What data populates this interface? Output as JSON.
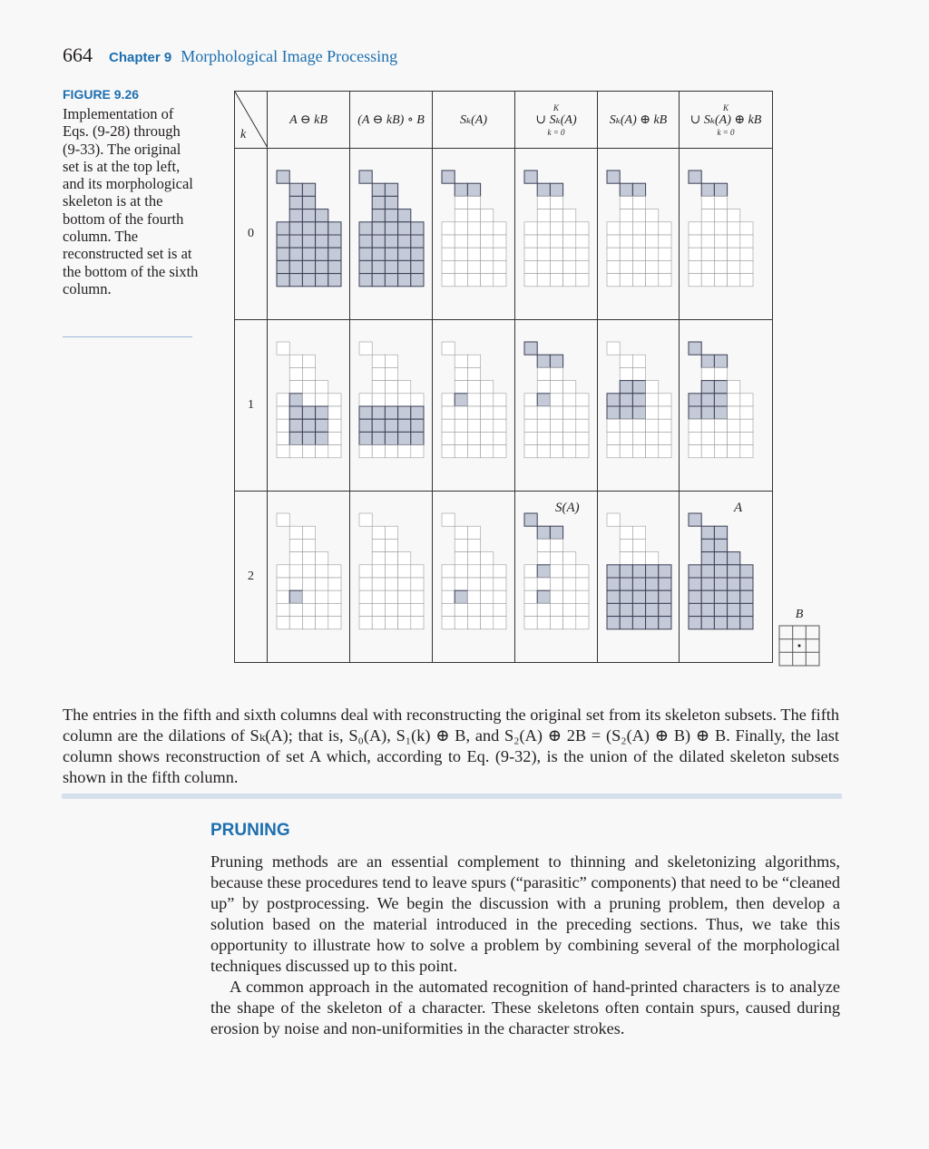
{
  "header": {
    "page_number": "664",
    "chapter": "Chapter 9",
    "chapter_title": "Morphological Image Processing"
  },
  "figure": {
    "label": "FIGURE 9.26",
    "caption": "Implementation of Eqs. (9-28) through (9-33). The original set is at the top left, and its morphological skeleton is at the bottom of the fourth column. The reconstructed set is at the bottom of the sixth column.",
    "k_header": "k",
    "columns": [
      {
        "main": "A ⊖ kB",
        "top": "",
        "bottom": ""
      },
      {
        "main": "(A ⊖ kB) ∘ B",
        "top": "",
        "bottom": ""
      },
      {
        "main": "Sₖ(A)",
        "top": "",
        "bottom": ""
      },
      {
        "main": "∪ Sₖ(A)",
        "top": "K",
        "bottom": "k = 0"
      },
      {
        "main": "Sₖ(A) ⊕ kB",
        "top": "",
        "bottom": ""
      },
      {
        "main": "∪ Sₖ(A) ⊕ kB",
        "top": "K",
        "bottom": "k = 0"
      }
    ],
    "row_labels": [
      "0",
      "1",
      "2"
    ],
    "panel_labels": {
      "skeleton": "S(A)",
      "reconstructed": "A"
    },
    "structuring_element_label": "B"
  },
  "body1": [
    "The entries in the fifth and sixth columns deal with reconstructing the original set from its skeleton subsets. The fifth column are the dilations of Sₖ(A); that is, S₀(A), S₁(k) ⊕ B, and S₂(A) ⊕ 2B = (S₂(A) ⊕ B) ⊕ B. Finally, the last column shows reconstruction of set A which, according to Eq. (9-32), is the union of the dilated skeleton subsets shown in the fifth column."
  ],
  "section": {
    "heading": "PRUNING",
    "paragraphs": [
      "Pruning methods are an essential complement to thinning and skeletonizing algorithms, because these procedures tend to leave spurs (“parasitic” components) that need to be “cleaned up” by postprocessing. We begin the discussion with a pruning problem, then develop a solution based on the material introduced in the preceding sections. Thus, we take this opportunity to illustrate how to solve a problem by combining several of the morphological techniques discussed up to this point.",
      "A common approach in the automated recognition of hand-printed characters is to analyze the shape of the skeleton of a character. These skeletons often contain spurs, caused during erosion by noise and non-uniformities in the character strokes."
    ]
  },
  "colors": {
    "accent": "#1d6fb0",
    "fill": "#c5cad8",
    "text": "#231f20"
  }
}
